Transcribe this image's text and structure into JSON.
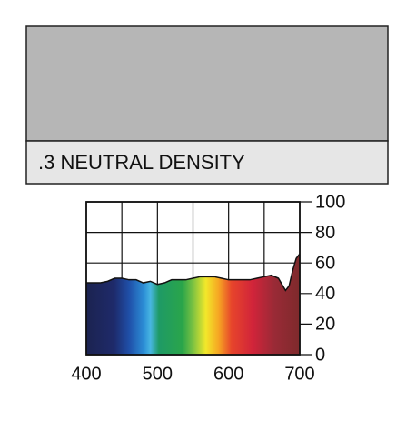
{
  "chart_data": {
    "type": "area",
    "title": ".3 NEUTRAL DENSITY",
    "x": [
      400,
      410,
      420,
      430,
      440,
      450,
      460,
      470,
      480,
      490,
      500,
      510,
      520,
      530,
      540,
      550,
      560,
      570,
      580,
      590,
      600,
      610,
      620,
      630,
      640,
      650,
      660,
      670,
      675,
      680,
      685,
      690,
      695,
      700
    ],
    "series": [
      {
        "values": [
          47,
          47,
          47,
          48,
          50,
          50,
          49,
          49,
          47,
          48,
          46,
          47,
          49,
          49,
          49,
          50,
          51,
          51,
          51,
          50,
          49,
          49,
          49,
          49,
          50,
          51,
          52,
          50,
          46,
          42,
          45,
          55,
          63,
          66
        ]
      }
    ],
    "xlim": [
      400,
      700
    ],
    "ylim": [
      0,
      100
    ],
    "xticks": [
      400,
      500,
      600,
      700
    ],
    "yticks": [
      0,
      20,
      40,
      60,
      80,
      100
    ],
    "grid": true
  }
}
